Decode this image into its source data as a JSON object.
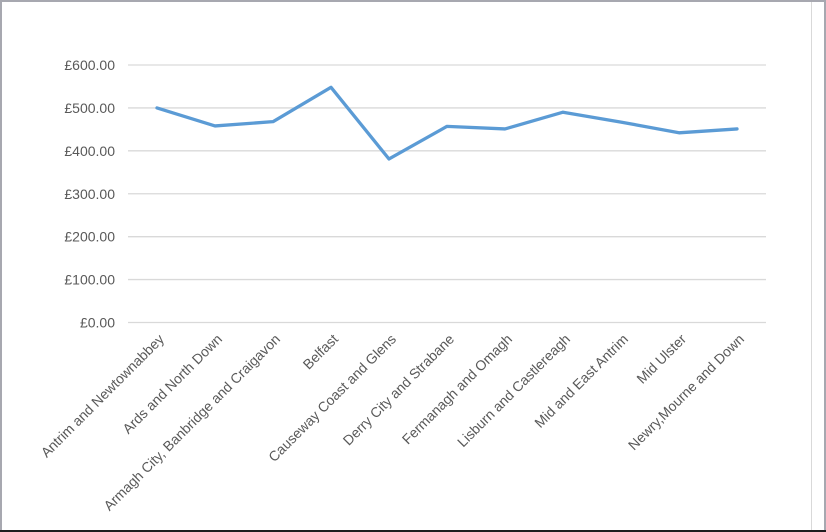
{
  "window": {
    "frame_border_color": "#a7a8b0",
    "bottom_border_color": "#1c1c1e",
    "chart_inner_border_color": "#d9d9d9",
    "chart_inner_border_x": 811,
    "background": "#ffffff"
  },
  "chart_data": {
    "type": "line",
    "title": "",
    "xlabel": "",
    "ylabel": "",
    "categories": [
      "Antrim and Newtownabbey",
      "Ards and North Down",
      "Armagh City, Banbridge and Craigavon",
      "Belfast",
      "Causeway Coast and Glens",
      "Derry City and Strabane",
      "Fermanagh and Omagh",
      "Lisburn and Castlereagh",
      "Mid and East Antrim",
      "Mid Ulster",
      "Newry,Mourne and Down"
    ],
    "series": [
      {
        "name": "",
        "values": [
          500,
          458,
          468,
          548,
          381,
          457,
          451,
          490,
          467,
          442,
          451
        ],
        "color": "#5B9BD5",
        "stroke_width": 3.3
      }
    ],
    "ylim": [
      0,
      600
    ],
    "yticks": [
      {
        "value": 0,
        "label": "£0.00"
      },
      {
        "value": 100,
        "label": "£100.00"
      },
      {
        "value": 200,
        "label": "£200.00"
      },
      {
        "value": 300,
        "label": "£300.00"
      },
      {
        "value": 400,
        "label": "£400.00"
      },
      {
        "value": 500,
        "label": "£500.00"
      },
      {
        "value": 600,
        "label": "£600.00"
      }
    ],
    "grid": true,
    "gridline_color": "#d9d9d9",
    "tick_label_color": "#595959",
    "x_label_rotation_deg": -45,
    "legend": "none",
    "markers": "none"
  }
}
